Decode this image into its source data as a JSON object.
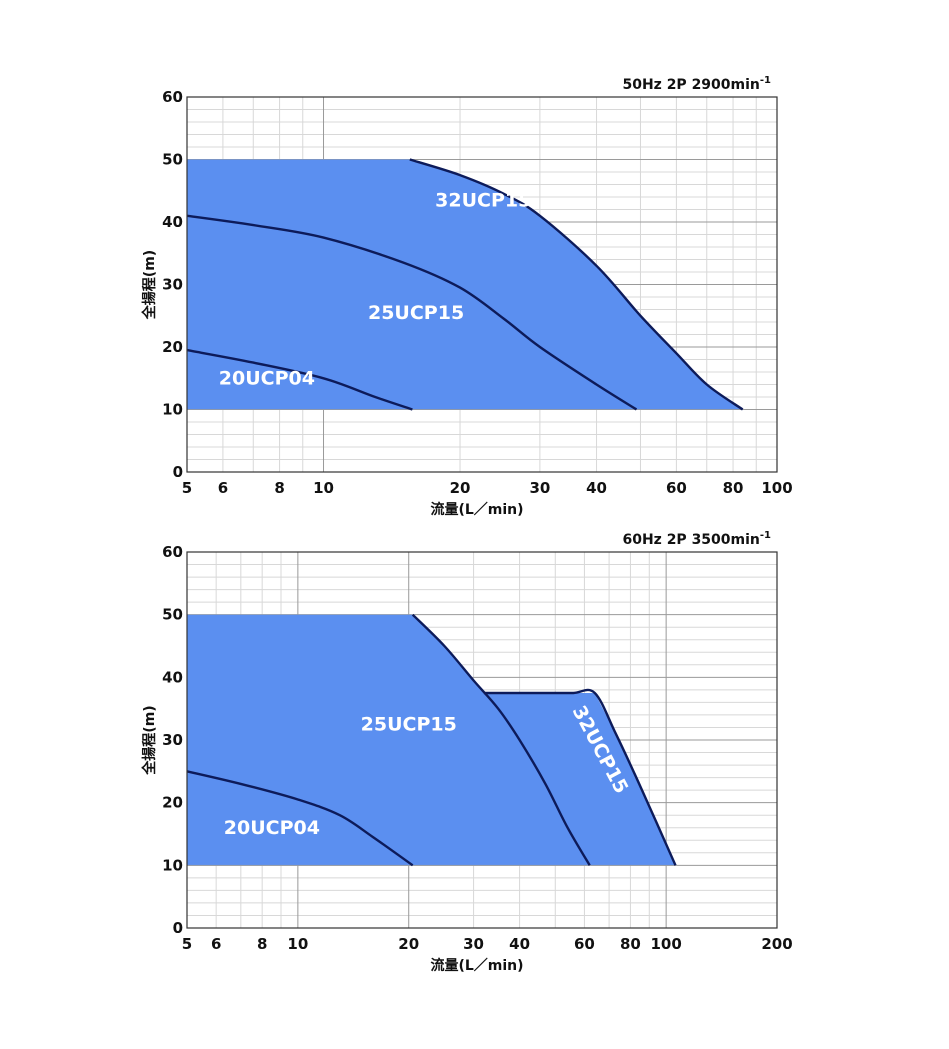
{
  "colors": {
    "fill": "#5b8ff0",
    "curve": "#0d1b5a",
    "grid_major": "#9a9a9a",
    "grid_minor": "#d8d8d8",
    "frame": "#333333"
  },
  "chart_data": [
    {
      "type": "area",
      "condition_text": "50Hz 2P 2900min",
      "condition_sup": "-1",
      "xlabel": "流量(L／min)",
      "ylabel": "全揚程(m)",
      "x_scale": "log",
      "xlim": [
        5,
        100
      ],
      "ylim": [
        0,
        60
      ],
      "x_tick_labels": [
        {
          "value": 5,
          "label": "5"
        },
        {
          "value": 6,
          "label": "6"
        },
        {
          "value": 8,
          "label": "8"
        },
        {
          "value": 10,
          "label": "10"
        },
        {
          "value": 20,
          "label": "20"
        },
        {
          "value": 30,
          "label": "30"
        },
        {
          "value": 40,
          "label": "40"
        },
        {
          "value": 60,
          "label": "60"
        },
        {
          "value": 80,
          "label": "80"
        },
        {
          "value": 100,
          "label": "100"
        }
      ],
      "y_tick_labels": [
        {
          "value": 0,
          "label": "0"
        },
        {
          "value": 10,
          "label": "10"
        },
        {
          "value": 20,
          "label": "20"
        },
        {
          "value": 30,
          "label": "30"
        },
        {
          "value": 40,
          "label": "40"
        },
        {
          "value": 50,
          "label": "50"
        },
        {
          "value": 60,
          "label": "60"
        }
      ],
      "x_major_grid": [
        10
      ],
      "x_minor_grid": [
        6,
        7,
        8,
        9,
        20,
        30,
        40,
        50,
        60,
        70,
        80,
        90
      ],
      "y_major_grid": [
        10,
        20,
        30,
        40,
        50
      ],
      "y_minor_step": 2,
      "envelope": {
        "x": [
          5,
          15.5,
          20,
          25,
          30,
          40,
          50,
          60,
          70,
          84,
          84,
          5
        ],
        "y": [
          50,
          50,
          47.5,
          44.5,
          41,
          33,
          25,
          19,
          14,
          10,
          10,
          10
        ]
      },
      "series": [
        {
          "name": "32UCP15",
          "x": [
            15.5,
            20,
            25,
            30,
            40,
            50,
            60,
            70,
            84
          ],
          "y": [
            50,
            47.5,
            44.5,
            41,
            33,
            25,
            19,
            14,
            10
          ]
        },
        {
          "name": "25UCP15",
          "x": [
            5,
            7,
            10,
            15,
            20,
            25,
            30,
            40,
            49
          ],
          "y": [
            41,
            39.5,
            37.5,
            33.5,
            29.5,
            24.5,
            20,
            14,
            10
          ]
        },
        {
          "name": "20UCP04",
          "x": [
            5,
            7,
            10,
            13,
            15.7
          ],
          "y": [
            19.5,
            17.5,
            15,
            12,
            10
          ]
        }
      ],
      "labels": [
        {
          "text": "32UCP15",
          "x": 22.5,
          "y": 42.5,
          "rotate": 0
        },
        {
          "text": "25UCP15",
          "x": 16,
          "y": 24.5,
          "rotate": 0
        },
        {
          "text": "20UCP04",
          "x": 7.5,
          "y": 14,
          "rotate": 0
        }
      ],
      "legend": "none"
    },
    {
      "type": "area",
      "condition_text": "60Hz 2P 3500min",
      "condition_sup": "-1",
      "xlabel": "流量(L／min)",
      "ylabel": "全揚程(m)",
      "x_scale": "log",
      "xlim": [
        5,
        200
      ],
      "ylim": [
        0,
        60
      ],
      "x_tick_labels": [
        {
          "value": 5,
          "label": "5"
        },
        {
          "value": 6,
          "label": "6"
        },
        {
          "value": 8,
          "label": "8"
        },
        {
          "value": 10,
          "label": "10"
        },
        {
          "value": 20,
          "label": "20"
        },
        {
          "value": 30,
          "label": "30"
        },
        {
          "value": 40,
          "label": "40"
        },
        {
          "value": 60,
          "label": "60"
        },
        {
          "value": 80,
          "label": "80"
        },
        {
          "value": 100,
          "label": "100"
        },
        {
          "value": 200,
          "label": "200"
        }
      ],
      "y_tick_labels": [
        {
          "value": 0,
          "label": "0"
        },
        {
          "value": 10,
          "label": "10"
        },
        {
          "value": 20,
          "label": "20"
        },
        {
          "value": 30,
          "label": "30"
        },
        {
          "value": 40,
          "label": "40"
        },
        {
          "value": 50,
          "label": "50"
        },
        {
          "value": 60,
          "label": "60"
        }
      ],
      "x_major_grid": [
        10,
        20,
        100
      ],
      "x_minor_grid": [
        6,
        7,
        8,
        9,
        30,
        40,
        50,
        60,
        70,
        80,
        90
      ],
      "y_major_grid": [
        10,
        20,
        30,
        40,
        50
      ],
      "y_minor_step": 2,
      "envelope": {
        "x": [
          5,
          20.5,
          25,
          32,
          38,
          47.5,
          64,
          73,
          86,
          106,
          106,
          5
        ],
        "y": [
          50,
          50,
          45,
          37.5,
          37.5,
          37.5,
          37.5,
          31,
          22,
          10,
          10,
          10
        ]
      },
      "series": [
        {
          "name": "32UCP15",
          "x": [
            32,
            47.5,
            56,
            64,
            73,
            86,
            106
          ],
          "y": [
            37.5,
            37.5,
            37.5,
            37.5,
            31,
            22,
            10
          ]
        },
        {
          "name": "25UCP15",
          "x": [
            20.5,
            25,
            30,
            35,
            40,
            47,
            54,
            62
          ],
          "y": [
            50,
            45,
            39.5,
            35,
            30,
            23,
            16,
            10
          ]
        },
        {
          "name": "20UCP04",
          "x": [
            5,
            7,
            10,
            13,
            16,
            20.5
          ],
          "y": [
            25,
            23,
            20.5,
            18,
            14.5,
            10
          ]
        }
      ],
      "labels": [
        {
          "text": "32UCP15",
          "x": 64,
          "y": 28,
          "rotate": 62
        },
        {
          "text": "25UCP15",
          "x": 20,
          "y": 31.5,
          "rotate": 0
        },
        {
          "text": "20UCP04",
          "x": 8.5,
          "y": 15,
          "rotate": 0
        }
      ],
      "legend": "none"
    }
  ]
}
